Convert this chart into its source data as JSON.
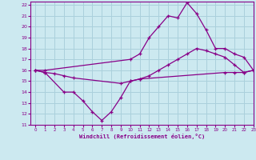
{
  "xlabel": "Windchill (Refroidissement éolien,°C)",
  "bg_color": "#cce9f0",
  "grid_color": "#aad0dc",
  "line_color": "#880088",
  "xlim": [
    -0.5,
    23
  ],
  "ylim": [
    11,
    22.3
  ],
  "xticks": [
    0,
    1,
    2,
    3,
    4,
    5,
    6,
    7,
    8,
    9,
    10,
    11,
    12,
    13,
    14,
    15,
    16,
    17,
    18,
    19,
    20,
    21,
    22,
    23
  ],
  "yticks": [
    11,
    12,
    13,
    14,
    15,
    16,
    17,
    18,
    19,
    20,
    21,
    22
  ],
  "line1_x": [
    0,
    1,
    10,
    11,
    12,
    13,
    14,
    15,
    16,
    17,
    18,
    19,
    20,
    21,
    22,
    23
  ],
  "line1_y": [
    16,
    16,
    17,
    17.5,
    19,
    20,
    21,
    20.8,
    22.2,
    21.2,
    19.7,
    18.0,
    18.0,
    17.5,
    17.2,
    16
  ],
  "line2_x": [
    0,
    1,
    3,
    4,
    5,
    6,
    7,
    8,
    9,
    10,
    11,
    12,
    13,
    14,
    15,
    16,
    17,
    18,
    19,
    20,
    21,
    22,
    23
  ],
  "line2_y": [
    16,
    15.8,
    14.0,
    14.0,
    13.2,
    12.2,
    11.4,
    12.2,
    13.5,
    15.0,
    15.2,
    15.5,
    16.0,
    16.5,
    17.0,
    17.5,
    18.0,
    17.8,
    17.5,
    17.2,
    16.5,
    15.8,
    16.0
  ],
  "line3_x": [
    0,
    1,
    2,
    3,
    4,
    9,
    10,
    11,
    20,
    21,
    22,
    23
  ],
  "line3_y": [
    16,
    15.8,
    15.7,
    15.5,
    15.3,
    14.8,
    15.0,
    15.2,
    15.8,
    15.8,
    15.8,
    16.0
  ]
}
